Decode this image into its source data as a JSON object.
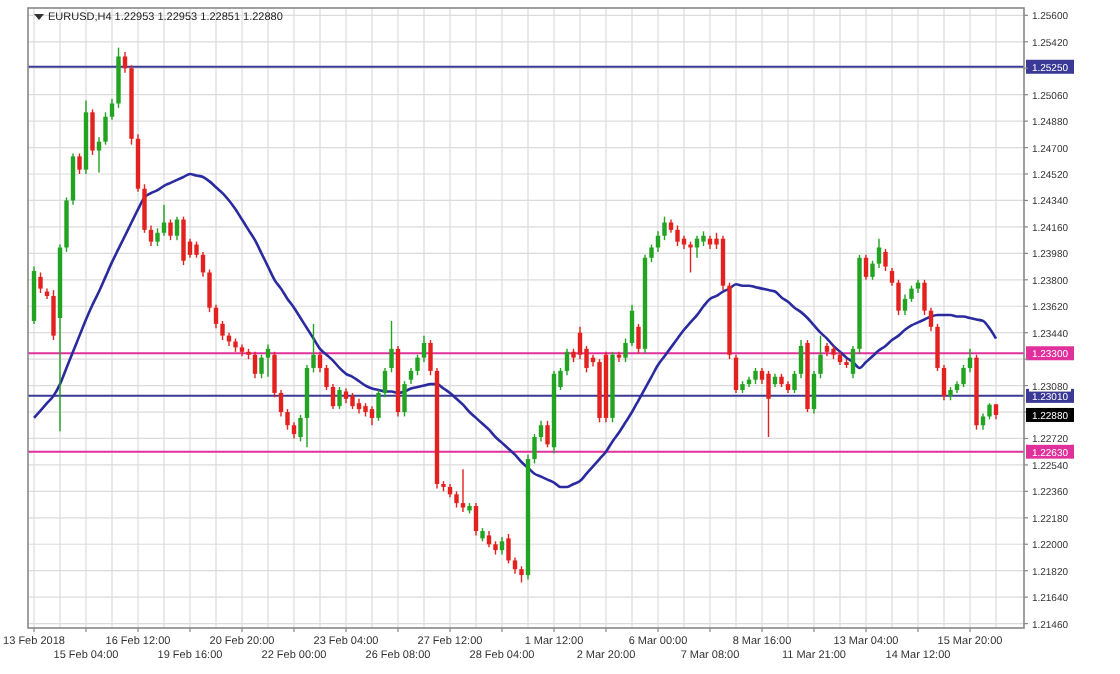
{
  "chart_data": {
    "type": "candlestick",
    "title": "EURUSD,H4 1.22953 1.22953 1.22851 1.22880",
    "categories": [
      "13 Feb 2018",
      null,
      null,
      null,
      null,
      null,
      null,
      null,
      "15 Feb 04:00",
      null,
      null,
      null,
      null,
      null,
      null,
      null,
      "16 Feb 12:00",
      null,
      null,
      null,
      null,
      null,
      null,
      null,
      "19 Feb 16:00",
      null,
      null,
      null,
      null,
      null,
      null,
      null,
      "20 Feb 20:00",
      null,
      null,
      null,
      null,
      null,
      null,
      null,
      "22 Feb 00:00",
      null,
      null,
      null,
      null,
      null,
      null,
      null,
      "23 Feb 04:00",
      null,
      null,
      null,
      null,
      null,
      null,
      null,
      "26 Feb 08:00",
      null,
      null,
      null,
      null,
      null,
      null,
      null,
      "27 Feb 12:00",
      null,
      null,
      null,
      null,
      null,
      null,
      null,
      "28 Feb 04:00",
      null,
      null,
      null,
      null,
      null,
      null,
      null,
      "1 Mar 12:00",
      null,
      null,
      null,
      null,
      null,
      null,
      null,
      "2 Mar 20:00",
      null,
      null,
      null,
      null,
      null,
      null,
      null,
      "6 Mar 00:00",
      null,
      null,
      null,
      null,
      null,
      null,
      null,
      "7 Mar 08:00",
      null,
      null,
      null,
      null,
      null,
      null,
      null,
      "8 Mar 16:00",
      null,
      null,
      null,
      null,
      null,
      null,
      null,
      "11 Mar 21:00",
      null,
      null,
      null,
      null,
      null,
      null,
      null,
      "13 Mar 04:00",
      null,
      null,
      null,
      null,
      null,
      null,
      null,
      "14 Mar 12:00",
      null,
      null,
      null,
      null,
      null,
      null,
      null,
      "15 Mar 20:00",
      null,
      null,
      null,
      null
    ],
    "colors": [
      "#22a322",
      "#e3211f",
      "#e3211f",
      "#e3211f",
      "#22a322",
      "#22a322",
      "#22a322",
      "#e3211f",
      "#22a322",
      "#e3211f",
      "#22a322",
      "#22a322",
      "#22a322",
      "#22a322",
      "#e3211f",
      "#e3211f",
      "#e3211f",
      "#e3211f",
      "#e3211f",
      "#22a322",
      "#22a322",
      "#e3211f",
      "#22a322",
      "#e3211f",
      "#e3211f",
      "#e3211f",
      "#e3211f",
      "#e3211f",
      "#e3211f",
      "#e3211f",
      "#e3211f",
      "#e3211f",
      "#e3211f",
      "#e3211f",
      "#e3211f",
      "#22a322",
      "#22a322",
      "#e3211f",
      "#e3211f",
      "#e3211f",
      "#e3211f",
      "#22a322",
      "#22a322",
      "#22a322",
      "#e3211f",
      "#e3211f",
      "#e3211f",
      "#22a322",
      "#e3211f",
      "#e3211f",
      "#e3211f",
      "#e3211f",
      "#e3211f",
      "#22a322",
      "#22a322",
      "#22a322",
      "#e3211f",
      "#22a322",
      "#22a322",
      "#22a322",
      "#22a322",
      "#e3211f",
      "#e3211f",
      "#e3211f",
      "#e3211f",
      "#e3211f",
      "#e3211f",
      "#22a322",
      "#e3211f",
      "#22a322",
      "#e3211f",
      "#e3211f",
      "#22a322",
      "#e3211f",
      "#e3211f",
      "#e3211f",
      "#22a322",
      "#22a322",
      "#22a322",
      "#e3211f",
      "#22a322",
      "#22a322",
      "#22a322",
      "#e3211f",
      "#e3211f",
      "#e3211f",
      "#e3211f",
      "#e3211f",
      "#e3211f",
      "#22a322",
      "#e3211f",
      "#22a322",
      "#22a322",
      "#e3211f",
      "#22a322",
      "#22a322",
      "#22a322",
      "#22a322",
      "#e3211f",
      "#e3211f",
      "#e3211f",
      "#e3211f",
      "#22a322",
      "#22a322",
      "#e3211f",
      "#e3211f",
      "#e3211f",
      "#e3211f",
      "#e3211f",
      "#22a322",
      "#22a322",
      "#22a322",
      "#e3211f",
      "#e3211f",
      "#22a322",
      "#e3211f",
      "#e3211f",
      "#22a322",
      "#22a322",
      "#e3211f",
      "#22a322",
      "#22a322",
      "#e3211f",
      "#e3211f",
      "#e3211f",
      "#e3211f",
      "#22a322",
      "#22a322",
      "#e3211f",
      "#22a322",
      "#22a322",
      "#e3211f",
      "#e3211f",
      "#e3211f",
      "#22a322",
      "#22a322",
      "#22a322",
      "#e3211f",
      "#e3211f",
      "#e3211f",
      "#e3211f",
      "#22a322",
      "#22a322",
      "#22a322",
      "#22a322",
      "#e3211f",
      "#22a322",
      "#22a322",
      "#e3211f"
    ],
    "ohlc": [
      [
        1.2352,
        1.2389,
        1.235,
        1.2386
      ],
      [
        1.2382,
        1.2385,
        1.2371,
        1.2374
      ],
      [
        1.2372,
        1.2374,
        1.2367,
        1.2369
      ],
      [
        1.2369,
        1.2373,
        1.2339,
        1.2342
      ],
      [
        1.2354,
        1.2404,
        1.2277,
        1.2402
      ],
      [
        1.2402,
        1.2436,
        1.2399,
        1.2434
      ],
      [
        1.2434,
        1.2466,
        1.2431,
        1.2464
      ],
      [
        1.2464,
        1.2466,
        1.2452,
        1.2455
      ],
      [
        1.2455,
        1.2502,
        1.2452,
        1.2494
      ],
      [
        1.2494,
        1.2496,
        1.2465,
        1.2468
      ],
      [
        1.2468,
        1.2477,
        1.2453,
        1.2474
      ],
      [
        1.2474,
        1.2494,
        1.2472,
        1.2491
      ],
      [
        1.2491,
        1.2503,
        1.2489,
        1.25
      ],
      [
        1.25,
        1.2538,
        1.2497,
        1.2532
      ],
      [
        1.2532,
        1.2535,
        1.2521,
        1.2524
      ],
      [
        1.2524,
        1.2526,
        1.2472,
        1.2476
      ],
      [
        1.2476,
        1.2479,
        1.244,
        1.2442
      ],
      [
        1.2442,
        1.2445,
        1.2412,
        1.2414
      ],
      [
        1.2414,
        1.2417,
        1.2403,
        1.2406
      ],
      [
        1.2406,
        1.2415,
        1.2403,
        1.2412
      ],
      [
        1.2412,
        1.2431,
        1.241,
        1.2419
      ],
      [
        1.2419,
        1.2421,
        1.2407,
        1.241
      ],
      [
        1.241,
        1.2423,
        1.2407,
        1.2421
      ],
      [
        1.2421,
        1.2423,
        1.239,
        1.2393
      ],
      [
        1.2406,
        1.2408,
        1.2395,
        1.2397
      ],
      [
        1.2404,
        1.2406,
        1.2395,
        1.2397
      ],
      [
        1.2397,
        1.2399,
        1.2382,
        1.2385
      ],
      [
        1.2385,
        1.2387,
        1.2358,
        1.2361
      ],
      [
        1.2361,
        1.2363,
        1.2347,
        1.235
      ],
      [
        1.235,
        1.2352,
        1.2339,
        1.2342
      ],
      [
        1.2342,
        1.2344,
        1.2335,
        1.2338
      ],
      [
        1.2338,
        1.234,
        1.2331,
        1.2334
      ],
      [
        1.2334,
        1.2336,
        1.2328,
        1.2331
      ],
      [
        1.2331,
        1.2333,
        1.2326,
        1.2329
      ],
      [
        1.2329,
        1.2331,
        1.2313,
        1.2316
      ],
      [
        1.2316,
        1.2329,
        1.2313,
        1.2327
      ],
      [
        1.2327,
        1.2336,
        1.2314,
        1.2333
      ],
      [
        1.2329,
        1.2331,
        1.23,
        1.2303
      ],
      [
        1.2303,
        1.2305,
        1.2287,
        1.229
      ],
      [
        1.229,
        1.2292,
        1.2278,
        1.2281
      ],
      [
        1.2281,
        1.2283,
        1.2272,
        1.2275
      ],
      [
        1.2273,
        1.2288,
        1.227,
        1.2286
      ],
      [
        1.2286,
        1.2322,
        1.2266,
        1.232
      ],
      [
        1.232,
        1.235,
        1.2317,
        1.2329
      ],
      [
        1.2329,
        1.2331,
        1.2317,
        1.232
      ],
      [
        1.232,
        1.2322,
        1.2305,
        1.2307
      ],
      [
        1.2307,
        1.2309,
        1.2292,
        1.2294
      ],
      [
        1.2294,
        1.2307,
        1.2292,
        1.2305
      ],
      [
        1.2304,
        1.2306,
        1.2296,
        1.2299
      ],
      [
        1.2301,
        1.2303,
        1.2292,
        1.2294
      ],
      [
        1.2296,
        1.2299,
        1.2289,
        1.2292
      ],
      [
        1.2294,
        1.2296,
        1.2287,
        1.229
      ],
      [
        1.2292,
        1.2294,
        1.2281,
        1.2286
      ],
      [
        1.2286,
        1.2305,
        1.2284,
        1.2303
      ],
      [
        1.2303,
        1.232,
        1.23,
        1.2318
      ],
      [
        1.232,
        1.2352,
        1.2317,
        1.2333
      ],
      [
        1.2333,
        1.2335,
        1.2287,
        1.229
      ],
      [
        1.229,
        1.2311,
        1.2287,
        1.2309
      ],
      [
        1.2312,
        1.232,
        1.2309,
        1.2318
      ],
      [
        1.2318,
        1.2329,
        1.2315,
        1.2327
      ],
      [
        1.2327,
        1.2342,
        1.2324,
        1.2337
      ],
      [
        1.2337,
        1.2339,
        1.2315,
        1.2318
      ],
      [
        1.2318,
        1.232,
        1.2238,
        1.2241
      ],
      [
        1.2241,
        1.2243,
        1.2236,
        1.2239
      ],
      [
        1.2239,
        1.2241,
        1.2232,
        1.2234
      ],
      [
        1.2234,
        1.2236,
        1.2225,
        1.2228
      ],
      [
        1.2228,
        1.2251,
        1.2222,
        1.2225
      ],
      [
        1.2223,
        1.2228,
        1.2221,
        1.2226
      ],
      [
        1.2226,
        1.2228,
        1.2206,
        1.2209
      ],
      [
        1.2204,
        1.2211,
        1.2202,
        1.2209
      ],
      [
        1.2206,
        1.2209,
        1.2198,
        1.22
      ],
      [
        1.22,
        1.2202,
        1.2193,
        1.2196
      ],
      [
        1.2196,
        1.2205,
        1.2193,
        1.2202
      ],
      [
        1.2204,
        1.2207,
        1.2187,
        1.2189
      ],
      [
        1.2189,
        1.2191,
        1.218,
        1.2183
      ],
      [
        1.2183,
        1.2185,
        1.2174,
        1.2179
      ],
      [
        1.2179,
        1.2261,
        1.2176,
        1.2258
      ],
      [
        1.2258,
        1.2275,
        1.2255,
        1.2273
      ],
      [
        1.2273,
        1.2284,
        1.227,
        1.2281
      ],
      [
        1.2281,
        1.2284,
        1.2266,
        1.2268
      ],
      [
        1.2266,
        1.2318,
        1.2262,
        1.2316
      ],
      [
        1.2307,
        1.232,
        1.2305,
        1.2318
      ],
      [
        1.2318,
        1.2333,
        1.2315,
        1.2331
      ],
      [
        1.2331,
        1.2333,
        1.2324,
        1.2327
      ],
      [
        1.2344,
        1.2348,
        1.2326,
        1.2329
      ],
      [
        1.2333,
        1.2335,
        1.2317,
        1.232
      ],
      [
        1.2327,
        1.2329,
        1.2321,
        1.2324
      ],
      [
        1.2324,
        1.2326,
        1.2283,
        1.2286
      ],
      [
        1.2329,
        1.2331,
        1.2283,
        1.2286
      ],
      [
        1.2286,
        1.2331,
        1.2283,
        1.2329
      ],
      [
        1.2329,
        1.2331,
        1.2324,
        1.2327
      ],
      [
        1.2327,
        1.234,
        1.2324,
        1.2337
      ],
      [
        1.2337,
        1.2363,
        1.2335,
        1.2359
      ],
      [
        1.2348,
        1.235,
        1.233,
        1.2333
      ],
      [
        1.2333,
        1.2397,
        1.233,
        1.2395
      ],
      [
        1.2395,
        1.2404,
        1.2392,
        1.2402
      ],
      [
        1.2402,
        1.2413,
        1.2399,
        1.241
      ],
      [
        1.241,
        1.2423,
        1.2407,
        1.2419
      ],
      [
        1.2419,
        1.2421,
        1.2412,
        1.2414
      ],
      [
        1.2414,
        1.2417,
        1.2403,
        1.2406
      ],
      [
        1.2408,
        1.241,
        1.2401,
        1.2404
      ],
      [
        1.2404,
        1.2406,
        1.2385,
        1.2402
      ],
      [
        1.2402,
        1.241,
        1.2395,
        1.2408
      ],
      [
        1.2406,
        1.2413,
        1.2403,
        1.241
      ],
      [
        1.2408,
        1.241,
        1.2401,
        1.2404
      ],
      [
        1.2408,
        1.2412,
        1.2401,
        1.2404
      ],
      [
        1.2408,
        1.241,
        1.2373,
        1.2376
      ],
      [
        1.2376,
        1.2378,
        1.2326,
        1.2329
      ],
      [
        1.2327,
        1.2329,
        1.2303,
        1.2305
      ],
      [
        1.2305,
        1.2311,
        1.2303,
        1.2309
      ],
      [
        1.2309,
        1.2314,
        1.2307,
        1.2312
      ],
      [
        1.2312,
        1.232,
        1.2309,
        1.2318
      ],
      [
        1.2318,
        1.232,
        1.2309,
        1.2312
      ],
      [
        1.2316,
        1.2318,
        1.2273,
        1.2299
      ],
      [
        1.2309,
        1.2316,
        1.2307,
        1.2314
      ],
      [
        1.2314,
        1.2316,
        1.2307,
        1.2309
      ],
      [
        1.2309,
        1.2311,
        1.2303,
        1.2305
      ],
      [
        1.2305,
        1.2318,
        1.2303,
        1.2316
      ],
      [
        1.2316,
        1.2339,
        1.2313,
        1.2335
      ],
      [
        1.2337,
        1.2339,
        1.229,
        1.2292
      ],
      [
        1.2292,
        1.2318,
        1.2289,
        1.2316
      ],
      [
        1.2316,
        1.2342,
        1.2313,
        1.2329
      ],
      [
        1.2335,
        1.2337,
        1.2328,
        1.2331
      ],
      [
        1.2333,
        1.2335,
        1.2326,
        1.2329
      ],
      [
        1.2329,
        1.2331,
        1.2322,
        1.2324
      ],
      [
        1.2324,
        1.2326,
        1.232,
        1.2322
      ],
      [
        1.2316,
        1.2335,
        1.2313,
        1.2333
      ],
      [
        1.2333,
        1.2397,
        1.233,
        1.2395
      ],
      [
        1.2395,
        1.2397,
        1.238,
        1.2382
      ],
      [
        1.2382,
        1.2393,
        1.238,
        1.2391
      ],
      [
        1.2391,
        1.2408,
        1.2388,
        1.2402
      ],
      [
        1.2399,
        1.2401,
        1.2386,
        1.2389
      ],
      [
        1.2386,
        1.2388,
        1.2376,
        1.2378
      ],
      [
        1.2378,
        1.238,
        1.2356,
        1.2359
      ],
      [
        1.2359,
        1.237,
        1.2356,
        1.2367
      ],
      [
        1.2367,
        1.2376,
        1.2365,
        1.2374
      ],
      [
        1.2374,
        1.238,
        1.2371,
        1.2378
      ],
      [
        1.2378,
        1.238,
        1.2356,
        1.2359
      ],
      [
        1.2359,
        1.2361,
        1.2345,
        1.2348
      ],
      [
        1.2348,
        1.235,
        1.2318,
        1.232
      ],
      [
        1.232,
        1.2322,
        1.2298,
        1.2301
      ],
      [
        1.2301,
        1.2307,
        1.2298,
        1.2305
      ],
      [
        1.2305,
        1.2311,
        1.2303,
        1.2309
      ],
      [
        1.2309,
        1.2322,
        1.2307,
        1.232
      ],
      [
        1.232,
        1.2333,
        1.2317,
        1.2327
      ],
      [
        1.2327,
        1.2329,
        1.2278,
        1.2281
      ],
      [
        1.2281,
        1.2289,
        1.2278,
        1.2287
      ],
      [
        1.2287,
        1.2296,
        1.2285,
        1.2295
      ],
      [
        1.22953,
        1.22953,
        1.22851,
        1.2288
      ]
    ],
    "series": [
      {
        "type": "line",
        "color": "#2b2ba0",
        "values": [
          1.2286,
          1.2291,
          1.2296,
          1.2301,
          1.2309,
          1.232,
          1.2331,
          1.2342,
          1.2353,
          1.2363,
          1.2372,
          1.2382,
          1.2392,
          1.2401,
          1.241,
          1.2419,
          1.2428,
          1.2436,
          1.2439,
          1.2441,
          1.2444,
          1.2446,
          1.2448,
          1.245,
          1.2452,
          1.2451,
          1.245,
          1.2447,
          1.2443,
          1.2439,
          1.2434,
          1.2428,
          1.2421,
          1.2414,
          1.2407,
          1.2398,
          1.2389,
          1.238,
          1.2374,
          1.2367,
          1.2361,
          1.2354,
          1.2347,
          1.234,
          1.2333,
          1.2329,
          1.2325,
          1.232,
          1.2316,
          1.2314,
          1.2311,
          1.2308,
          1.2306,
          1.2305,
          1.2304,
          1.2304,
          1.2303,
          1.2304,
          1.2306,
          1.2307,
          1.2308,
          1.2309,
          1.2309,
          1.2306,
          1.2303,
          1.2299,
          1.2295,
          1.229,
          1.2286,
          1.2282,
          1.2278,
          1.2273,
          1.2269,
          1.2265,
          1.2261,
          1.2256,
          1.2252,
          1.2248,
          1.2246,
          1.2244,
          1.2242,
          1.2239,
          1.2239,
          1.2241,
          1.2243,
          1.2248,
          1.2253,
          1.2258,
          1.2263,
          1.227,
          1.2276,
          1.2283,
          1.229,
          1.2298,
          1.2306,
          1.2314,
          1.2322,
          1.2328,
          1.2334,
          1.234,
          1.2346,
          1.2351,
          1.2356,
          1.2362,
          1.2367,
          1.2369,
          1.2372,
          1.2374,
          1.2377,
          1.2376,
          1.2376,
          1.2375,
          1.2374,
          1.2373,
          1.2372,
          1.2368,
          1.2365,
          1.2361,
          1.2358,
          1.2354,
          1.2349,
          1.2344,
          1.234,
          1.2335,
          1.2331,
          1.2327,
          1.2324,
          1.232,
          1.2324,
          1.2328,
          1.2332,
          1.2335,
          1.2339,
          1.2342,
          1.2346,
          1.2349,
          1.2351,
          1.2353,
          1.2355,
          1.2356,
          1.2356,
          1.2356,
          1.2355,
          1.2355,
          1.2354,
          1.2353,
          1.2352,
          1.2347,
          1.234
        ]
      }
    ],
    "ylim": [
      1.2143,
      1.2565
    ],
    "yticks": [
      {
        "value": 1.256,
        "label": "1.25600"
      },
      {
        "value": 1.2542,
        "label": "1.25420"
      },
      {
        "value": 1.2524,
        "label": null
      },
      {
        "value": 1.2506,
        "label": "1.25060"
      },
      {
        "value": 1.2488,
        "label": "1.24880"
      },
      {
        "value": 1.247,
        "label": "1.24700"
      },
      {
        "value": 1.2452,
        "label": "1.24520"
      },
      {
        "value": 1.2434,
        "label": "1.24340"
      },
      {
        "value": 1.2416,
        "label": "1.24160"
      },
      {
        "value": 1.2398,
        "label": "1.23980"
      },
      {
        "value": 1.238,
        "label": "1.23800"
      },
      {
        "value": 1.2362,
        "label": "1.23620"
      },
      {
        "value": 1.2344,
        "label": "1.23440"
      },
      {
        "value": 1.2326,
        "label": null
      },
      {
        "value": 1.2308,
        "label": "1.23080"
      },
      {
        "value": 1.229,
        "label": null
      },
      {
        "value": 1.2272,
        "label": "1.22720"
      },
      {
        "value": 1.2254,
        "label": "1.22540"
      },
      {
        "value": 1.2236,
        "label": "1.22360"
      },
      {
        "value": 1.2218,
        "label": "1.22180"
      },
      {
        "value": 1.22,
        "label": "1.22000"
      },
      {
        "value": 1.2182,
        "label": "1.21820"
      },
      {
        "value": 1.2164,
        "label": "1.21640"
      },
      {
        "value": 1.2146,
        "label": "1.21460"
      }
    ],
    "grid": true,
    "ref_lines": [
      {
        "axis": "y",
        "value": 1.2525,
        "label": "1.25250",
        "color": "#3a3a96"
      },
      {
        "axis": "y",
        "value": 1.233,
        "label": "1.23300",
        "color": "#e0309c"
      },
      {
        "axis": "y",
        "value": 1.2301,
        "label": "1.23010",
        "color": "#3a3a96"
      },
      {
        "axis": "y",
        "value": 1.2263,
        "label": "1.22630",
        "color": "#e0309c"
      }
    ],
    "annotations": [
      "1.22880"
    ]
  }
}
